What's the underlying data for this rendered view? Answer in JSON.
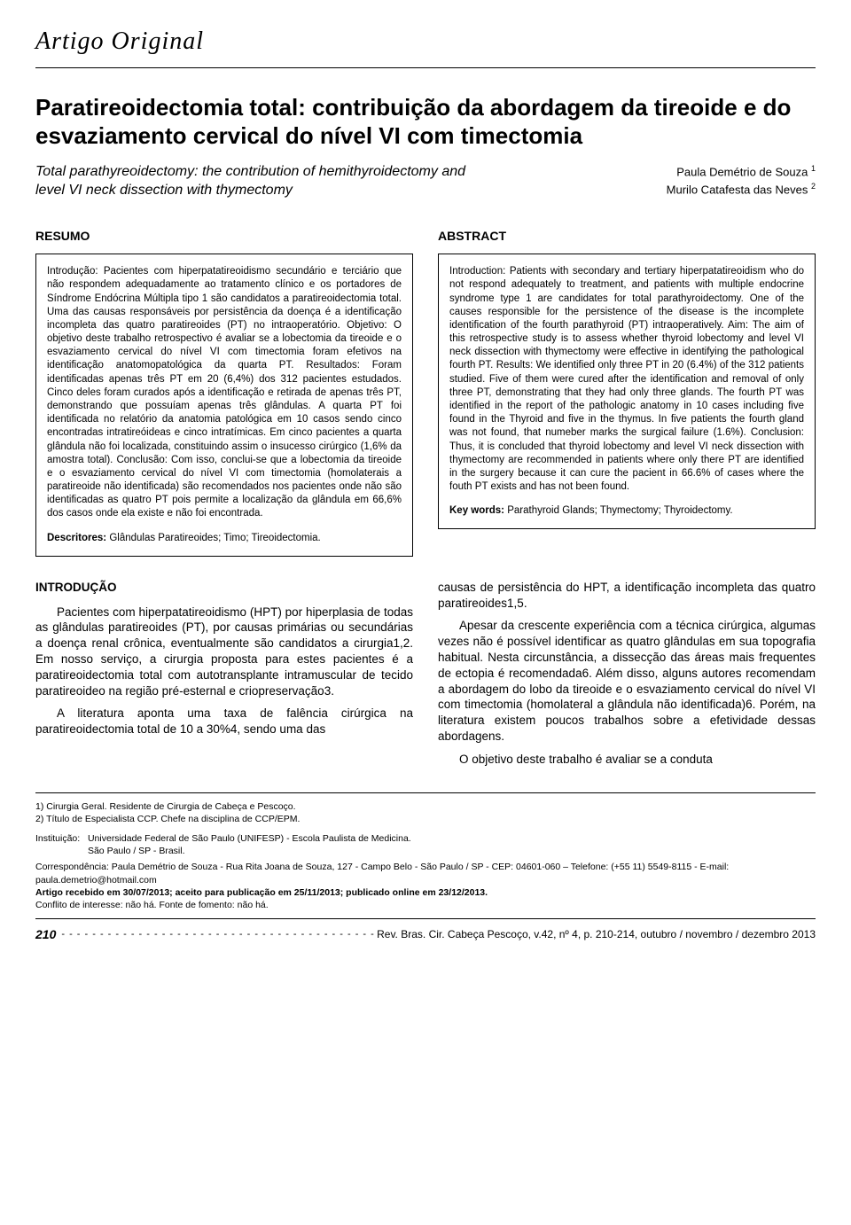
{
  "article_type": "Artigo Original",
  "title_pt": "Paratireoidectomia total: contribuição da abordagem da tireoide e do esvaziamento cervical do nível VI com timectomia",
  "title_en": "Total parathyreoidectomy: the contribution of hemithyroidectomy and level VI neck dissection with thymectomy",
  "authors": [
    {
      "name": "Paula Demétrio de Souza",
      "sup": "1"
    },
    {
      "name": "Murilo Catafesta das Neves",
      "sup": "2"
    }
  ],
  "resumo": {
    "heading": "RESUMO",
    "body": "Introdução: Pacientes com hiperpatatireoidismo secundário e terciário que não respondem adequadamente ao tratamento clínico e os portadores de Síndrome Endócrina Múltipla tipo 1 são candidatos a paratireoidectomia total. Uma das causas responsáveis por persistência da doença é a identificação incompleta das quatro paratireoides (PT) no intraoperatório. Objetivo: O objetivo deste trabalho retrospectivo é avaliar se a lobectomia da tireoide e o esvaziamento cervical do nível VI com timectomia foram efetivos na identificação anatomopatológica da quarta PT. Resultados: Foram identificadas apenas três PT em 20 (6,4%) dos 312 pacientes estudados. Cinco deles foram curados após a identificação e retirada de apenas três PT, demonstrando que possuíam apenas três glândulas. A quarta PT foi identificada no relatório da anatomia patológica em 10 casos sendo cinco encontradas intratireóideas e cinco intratímicas. Em cinco pacientes a quarta glândula não foi localizada, constituindo assim o insucesso cirúrgico (1,6% da amostra total). Conclusão: Com isso, conclui-se que a lobectomia da tireoide e o esvaziamento cervical do nível VI com timectomia (homolaterais a paratireoide não identificada) são recomendados nos pacientes onde não são identificadas as quatro PT pois permite a localização da glândula em 66,6% dos casos onde ela existe e não foi encontrada.",
    "keywords_label": "Descritores:",
    "keywords": "Glândulas Paratireoides; Timo; Tireoidectomia."
  },
  "abstract": {
    "heading": "ABSTRACT",
    "body": "Introduction: Patients with secondary and tertiary hiperpatatireoidism who do not respond adequately to treatment, and patients with multiple endocrine syndrome type 1 are candidates for total parathyroidectomy. One of the causes responsible for the persistence of the disease is the incomplete identification of the fourth parathyroid (PT) intraoperatively. Aim: The aim of this retrospective study is to assess whether thyroid lobectomy and level VI neck dissection with thymectomy were effective in identifying the pathological fourth PT. Results: We identified only three PT in 20 (6.4%) of the 312 patients studied. Five of them were cured after the identification and removal of only three PT, demonstrating that they had only three glands. The fourth PT was identified in the report of the pathologic anatomy in 10 cases including five found in the Thyroid and five in the thymus. In five patients the fourth gland was not found, that numeber marks the surgical failure (1.6%). Conclusion: Thus, it is concluded that thyroid lobectomy and level VI neck dissection with thymectomy are recommended in patients where only there PT are identified in the surgery because it can cure the pacient in 66.6% of cases where the fouth PT exists and has not been found.",
    "keywords_label": "Key words:",
    "keywords": "Parathyroid Glands; Thymectomy; Thyroidectomy."
  },
  "intro_heading": "INTRODUÇÃO",
  "intro_paragraphs_left": [
    "Pacientes com hiperpatatireoidismo (HPT) por hiperplasia de todas as glândulas paratireoides (PT), por causas primárias ou secundárias a doença renal crônica, eventualmente são candidatos a cirurgia1,2. Em nosso serviço, a cirurgia proposta para estes pacientes é a paratireoidectomia total com autotransplante intramuscular de tecido paratireoideo na região pré-esternal e criopreservação3.",
    "A literatura aponta uma taxa de falência cirúrgica na paratireoidectomia total de 10 a 30%4, sendo uma das"
  ],
  "intro_paragraphs_right": [
    "causas de persistência do HPT, a identificação incompleta das quatro paratireoides1,5.",
    "Apesar da crescente experiência com a técnica cirúrgica, algumas vezes não é possível identificar as quatro glândulas em sua topografia habitual. Nesta circunstância, a dissecção das áreas mais frequentes de ectopia é recomendada6. Além disso, alguns autores recomendam a abordagem do lobo da tireoide e o esvaziamento cervical do nível VI com timectomia (homolateral a glândula não identificada)6. Porém, na literatura existem poucos trabalhos sobre a efetividade dessas abordagens.",
    "O objetivo deste trabalho é avaliar se a conduta"
  ],
  "affiliations": [
    "1) Cirurgia Geral. Residente de Cirurgia de Cabeça e Pescoço.",
    "2) Título de Especialista CCP. Chefe na disciplina de CCP/EPM."
  ],
  "institution_label": "Instituição:",
  "institution_lines": [
    "Universidade Federal de São Paulo (UNIFESP) - Escola Paulista de Medicina.",
    "São Paulo / SP - Brasil."
  ],
  "correspondence": "Correspondência: Paula Demétrio de Souza - Rua Rita Joana de Souza, 127 - Campo Belo - São Paulo / SP - CEP: 04601-060 – Telefone: (+55 11) 5549-8115 - E-mail: paula.demetrio@hotmail.com",
  "received": "Artigo recebido em 30/07/2013; aceito para publicação em 25/11/2013; publicado online em 23/12/2013.",
  "conflict": "Conflito de interesse: não há. Fonte de fomento: não há.",
  "page_number": "210",
  "journal_ref": "Rev. Bras. Cir. Cabeça Pescoço, v.42, nº 4, p. 210-214, outubro / novembro / dezembro 2013"
}
